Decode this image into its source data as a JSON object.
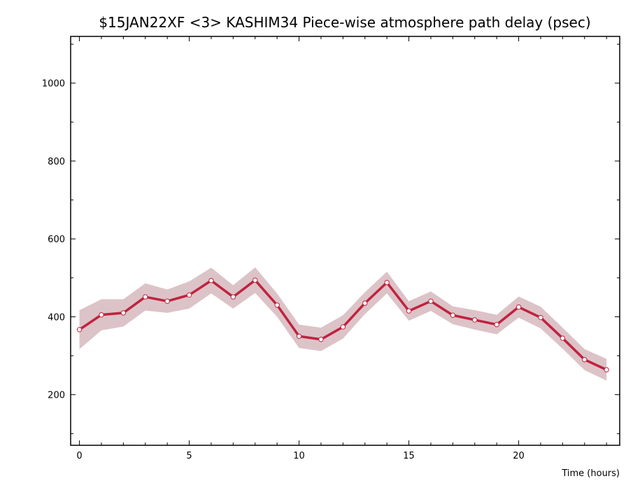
{
  "chart_data": {
    "type": "line",
    "title": "$15JAN22XF <3>   KASHIM34  Piece-wise atmosphere path delay (psec)",
    "xlabel": "Time (hours)",
    "ylabel": "",
    "xlim": [
      -0.4,
      24.6
    ],
    "ylim": [
      70,
      1120
    ],
    "x_ticks": [
      0,
      5,
      10,
      15,
      20
    ],
    "y_ticks": [
      200,
      400,
      600,
      800,
      1000
    ],
    "grid": false,
    "series": [
      {
        "name": "",
        "x": [
          0,
          1,
          2,
          3,
          4,
          5,
          6,
          7,
          8,
          9,
          10,
          11,
          12,
          13,
          14,
          15,
          16,
          17,
          18,
          19,
          20,
          21,
          22,
          23,
          24
        ],
        "values": [
          367,
          405,
          410,
          451,
          440,
          456,
          493,
          451,
          494,
          430,
          350,
          342,
          374,
          435,
          488,
          415,
          440,
          404,
          392,
          380,
          425,
          398,
          345,
          290,
          264
        ],
        "error": [
          50,
          40,
          35,
          35,
          30,
          35,
          33,
          30,
          33,
          30,
          30,
          30,
          30,
          28,
          28,
          25,
          25,
          23,
          25,
          25,
          27,
          28,
          27,
          27,
          28
        ]
      }
    ],
    "colors": {
      "line": "#c0223f",
      "band": "#dcc3c7",
      "marker_fill": "#ffffff",
      "axis": "#000000"
    }
  }
}
